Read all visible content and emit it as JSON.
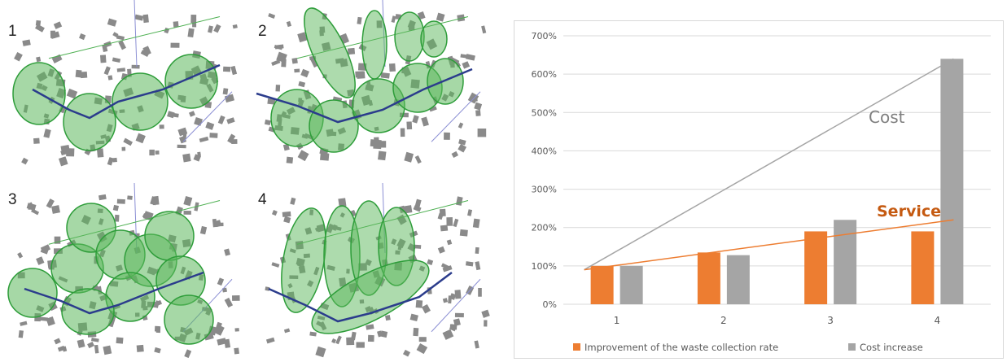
{
  "colors": {
    "circle_fill": "#5cb85c",
    "circle_stroke": "#2e9d3a",
    "road": "#2b3c8c",
    "building": "#8a8a8a",
    "service": "#ed7d31",
    "cost": "#a5a5a5"
  },
  "maps": [
    {
      "label": "1"
    },
    {
      "label": "2"
    },
    {
      "label": "3"
    },
    {
      "label": "4"
    }
  ],
  "chart_data": {
    "type": "bar",
    "categories": [
      "1",
      "2",
      "3",
      "4"
    ],
    "series": [
      {
        "name": "Improvement of the waste collection rate",
        "values": [
          100,
          135,
          190,
          190
        ],
        "color": "#ed7d31"
      },
      {
        "name": "Cost increase",
        "values": [
          100,
          128,
          220,
          640
        ],
        "color": "#a5a5a5"
      }
    ],
    "trend_lines": [
      {
        "label": "Cost",
        "from": [
          1,
          90
        ],
        "to": [
          4,
          640
        ],
        "color": "#a5a5a5"
      },
      {
        "label": "Service",
        "from": [
          1,
          90
        ],
        "to": [
          4,
          220
        ],
        "color": "#ed7d31"
      }
    ],
    "ylim": [
      0,
      700
    ],
    "yticks": [
      "0%",
      "100%",
      "200%",
      "300%",
      "400%",
      "500%",
      "600%",
      "700%"
    ],
    "grid": true,
    "legend_position": "bottom"
  }
}
